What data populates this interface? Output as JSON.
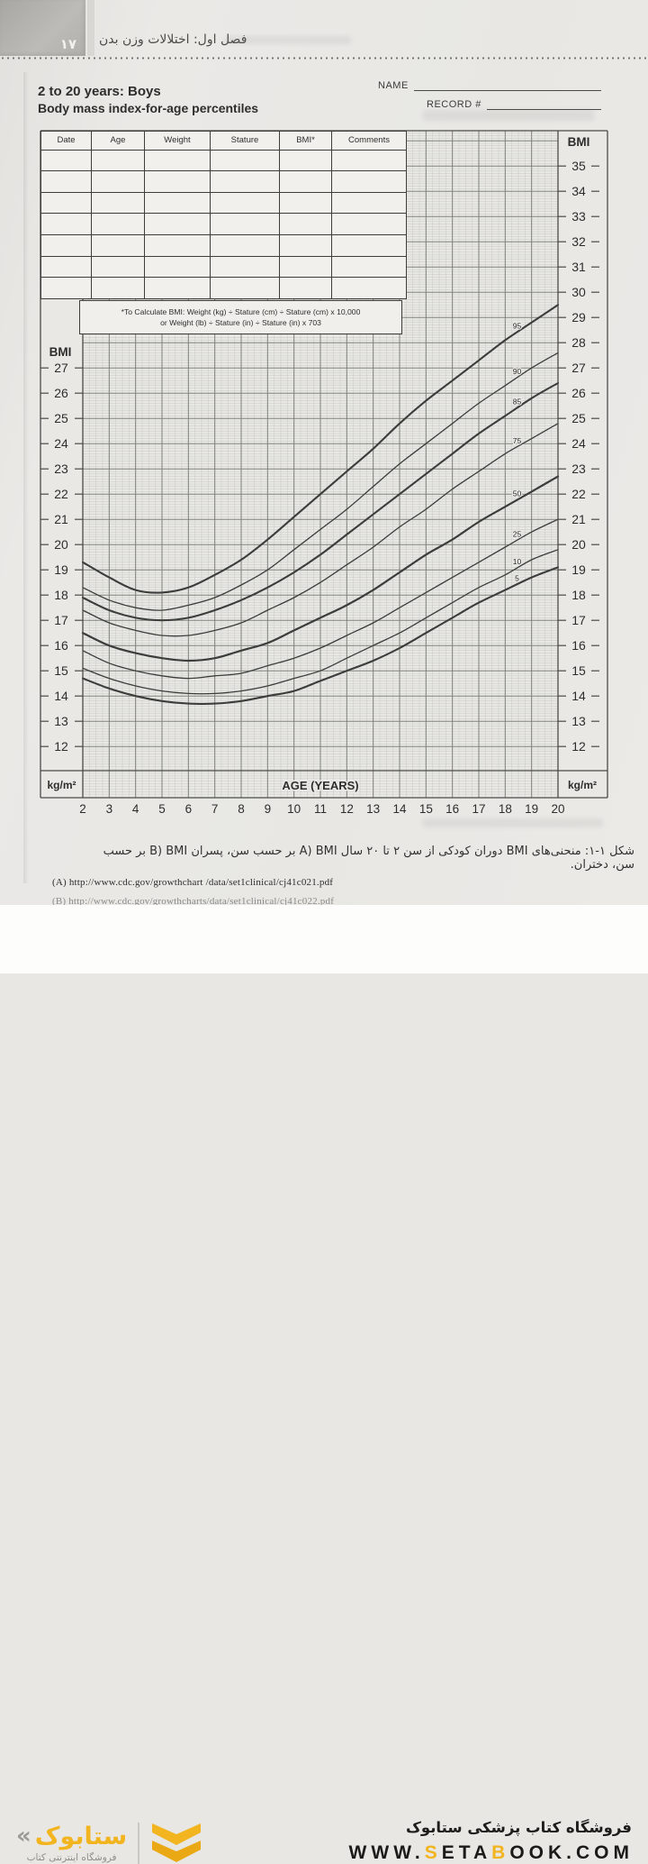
{
  "page": {
    "header": {
      "page_number": "۱۷",
      "chapter_title": "فصل اول: اختلالات وزن بدن"
    },
    "form": {
      "title_line1": "2 to 20 years: Boys",
      "title_line2": "Body mass index-for-age percentiles",
      "name_label": "NAME",
      "record_label": "RECORD #",
      "table": {
        "columns": [
          "Date",
          "Age",
          "Weight",
          "Stature",
          "BMI*",
          "Comments"
        ],
        "empty_rows": 7
      },
      "bmi_note_line1": "*To Calculate BMI: Weight (kg) ÷ Stature (cm) ÷ Stature (cm) x 10,000",
      "bmi_note_line2": "or Weight (lb) ÷ Stature (in) ÷ Stature (in) x 703",
      "left_axis_title": "BMI",
      "right_axis_title": "BMI",
      "x_axis_title": "AGE (YEARS)",
      "unit_label": "kg/m²"
    },
    "caption": "شکل ۱-۱: منحنی‌های BMI دوران کودکی از سن ۲ تا ۲۰ سال A) BMI بر حسب سن، پسران B) BMI بر حسب سن، دختران.",
    "links": [
      "(A) http://www.cdc.gov/growthchart /data/set1clinical/cj41c021.pdf",
      "(B) http://www.cdc.gov/growthcharts/data/set1clinical/cj41c022.pdf"
    ],
    "footer": {
      "brand_name": "ستابوک",
      "brand_mark": "«",
      "brand_tagline": "فروشگاه اینترنتی کتاب",
      "store_title": "فروشگاه کتاب پزشکی ستابوک",
      "url_segments": [
        {
          "text": "WWW.",
          "color": "#1a1a18"
        },
        {
          "text": "S",
          "color": "#f2b41f"
        },
        {
          "text": "ETA",
          "color": "#1a1a18"
        },
        {
          "text": "B",
          "color": "#f2b41f"
        },
        {
          "text": "OOK.COM",
          "color": "#1a1a18"
        }
      ],
      "accent_color": "#f2b41f"
    }
  },
  "chart_data": {
    "type": "line",
    "title": "2 to 20 years: Boys — Body mass index-for-age percentiles",
    "xlabel": "AGE (YEARS)",
    "ylabel": "BMI (kg/m²)",
    "xlim": [
      2,
      20
    ],
    "ylim": [
      11.0,
      36.4
    ],
    "grid": true,
    "x": [
      2,
      3,
      4,
      5,
      6,
      7,
      8,
      9,
      10,
      11,
      12,
      13,
      14,
      15,
      16,
      17,
      18,
      19,
      20
    ],
    "left_ticks": [
      27,
      26,
      25,
      24,
      23,
      22,
      21,
      20,
      19,
      18,
      17,
      16,
      15,
      14,
      13,
      12
    ],
    "right_ticks": [
      35,
      34,
      33,
      32,
      31,
      30,
      29,
      28,
      27,
      26,
      25,
      24,
      23,
      22,
      21,
      20,
      19,
      18,
      17,
      16,
      15,
      14,
      13,
      12
    ],
    "series": [
      {
        "name": "95",
        "values": [
          19.3,
          18.7,
          18.2,
          18.1,
          18.3,
          18.8,
          19.4,
          20.2,
          21.1,
          22.0,
          22.9,
          23.8,
          24.8,
          25.7,
          26.5,
          27.3,
          28.1,
          28.8,
          29.5
        ]
      },
      {
        "name": "90",
        "values": [
          18.3,
          17.8,
          17.5,
          17.4,
          17.6,
          17.9,
          18.4,
          19.0,
          19.8,
          20.6,
          21.4,
          22.3,
          23.2,
          24.0,
          24.8,
          25.6,
          26.3,
          27.0,
          27.6
        ]
      },
      {
        "name": "85",
        "values": [
          17.9,
          17.4,
          17.1,
          17.0,
          17.1,
          17.4,
          17.8,
          18.3,
          18.9,
          19.6,
          20.4,
          21.2,
          22.0,
          22.8,
          23.6,
          24.4,
          25.1,
          25.8,
          26.4
        ]
      },
      {
        "name": "75",
        "values": [
          17.4,
          16.9,
          16.6,
          16.4,
          16.4,
          16.6,
          16.9,
          17.4,
          17.9,
          18.5,
          19.2,
          19.9,
          20.7,
          21.4,
          22.2,
          22.9,
          23.6,
          24.2,
          24.8
        ]
      },
      {
        "name": "50",
        "values": [
          16.5,
          16.0,
          15.7,
          15.5,
          15.4,
          15.5,
          15.8,
          16.1,
          16.6,
          17.1,
          17.6,
          18.2,
          18.9,
          19.6,
          20.2,
          20.9,
          21.5,
          22.1,
          22.7
        ]
      },
      {
        "name": "25",
        "values": [
          15.8,
          15.3,
          15.0,
          14.8,
          14.7,
          14.8,
          14.9,
          15.2,
          15.5,
          15.9,
          16.4,
          16.9,
          17.5,
          18.1,
          18.7,
          19.3,
          19.9,
          20.5,
          21.0
        ]
      },
      {
        "name": "10",
        "values": [
          15.1,
          14.7,
          14.4,
          14.2,
          14.1,
          14.1,
          14.2,
          14.4,
          14.7,
          15.0,
          15.5,
          16.0,
          16.5,
          17.1,
          17.7,
          18.3,
          18.8,
          19.4,
          19.8
        ]
      },
      {
        "name": "5",
        "values": [
          14.7,
          14.3,
          14.0,
          13.8,
          13.7,
          13.7,
          13.8,
          14.0,
          14.2,
          14.6,
          15.0,
          15.4,
          15.9,
          16.5,
          17.1,
          17.7,
          18.2,
          18.7,
          19.1
        ]
      }
    ],
    "legend": "percentile labels printed on curves: 95, 90, 85, 75, 50, 25, 10, 5"
  }
}
